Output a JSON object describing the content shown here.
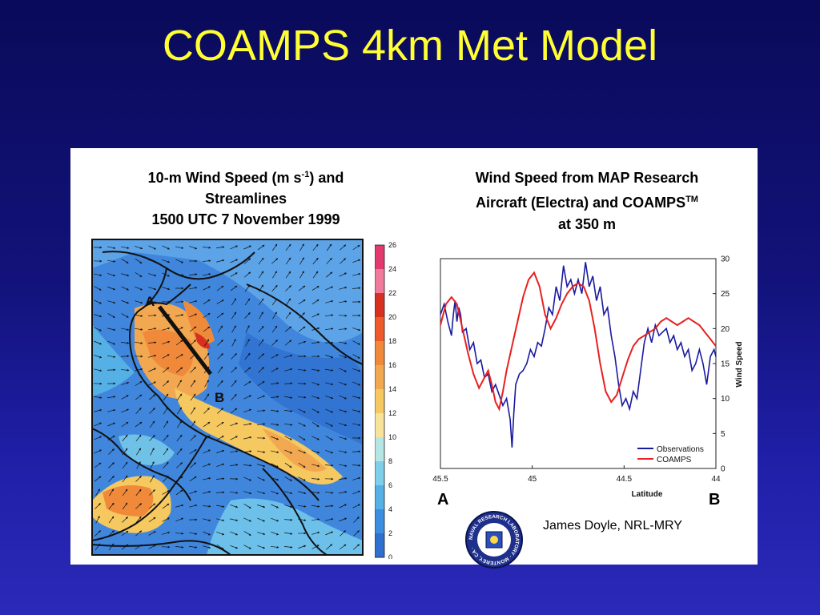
{
  "slide": {
    "title": "COAMPS 4km Met Model",
    "credit": "James Doyle, NRL-MRY",
    "seal_text": "NAVAL RESEARCH LABORATORY · MONTEREY, CA ·"
  },
  "map": {
    "title_line1_a": "10-m Wind Speed (m s",
    "title_line1_sup": "-1",
    "title_line1_b": ") and",
    "title_line2": "Streamlines",
    "title_line3": "1500 UTC 7 November 1999",
    "label_a": "A",
    "label_b": "B",
    "colorbar_ticks": [
      "26",
      "24",
      "22",
      "20",
      "18",
      "16",
      "14",
      "12",
      "10",
      "8",
      "6",
      "4",
      "2",
      "0"
    ],
    "colorbar_colors": [
      "#e23a6e",
      "#f07a9a",
      "#d83020",
      "#ee5a2a",
      "#f08a3a",
      "#f2a850",
      "#f5c860",
      "#f7e49a",
      "#b5e6e4",
      "#7dcfea",
      "#55b0e6",
      "#3c8ee0",
      "#2f6fcf"
    ]
  },
  "plot": {
    "title_line1": "Wind Speed from MAP Research",
    "title_line2_a": "Aircraft (Electra) and COAMPS",
    "title_line2_sup": "TM",
    "title_line3": "at 350 m",
    "end_a": "A",
    "end_b": "B"
  },
  "chart_data": {
    "type": "line",
    "xlabel": "Latitude",
    "ylabel": "Wind Speed",
    "xlim": [
      45.5,
      44
    ],
    "ylim": [
      0,
      30
    ],
    "xticks": [
      "45.5",
      "45",
      "44.5",
      "44"
    ],
    "yticks": [
      "0",
      "5",
      "10",
      "15",
      "20",
      "25",
      "30"
    ],
    "legend": "bottom-right",
    "series": [
      {
        "name": "Observations",
        "color": "#1a1aa0",
        "points": [
          [
            45.5,
            22
          ],
          [
            45.48,
            23.5
          ],
          [
            45.46,
            21
          ],
          [
            45.44,
            19
          ],
          [
            45.43,
            22
          ],
          [
            45.42,
            24
          ],
          [
            45.41,
            21
          ],
          [
            45.4,
            23
          ],
          [
            45.39,
            22
          ],
          [
            45.38,
            19.5
          ],
          [
            45.36,
            20
          ],
          [
            45.34,
            17
          ],
          [
            45.32,
            18
          ],
          [
            45.3,
            15
          ],
          [
            45.28,
            15.5
          ],
          [
            45.26,
            13
          ],
          [
            45.24,
            13.5
          ],
          [
            45.22,
            11
          ],
          [
            45.2,
            12
          ],
          [
            45.18,
            10.5
          ],
          [
            45.16,
            9
          ],
          [
            45.14,
            10
          ],
          [
            45.12,
            7
          ],
          [
            45.11,
            3
          ],
          [
            45.1,
            8
          ],
          [
            45.09,
            12
          ],
          [
            45.07,
            13.5
          ],
          [
            45.05,
            14
          ],
          [
            45.03,
            15
          ],
          [
            45.01,
            17
          ],
          [
            44.99,
            16
          ],
          [
            44.97,
            18
          ],
          [
            44.95,
            17.5
          ],
          [
            44.93,
            20
          ],
          [
            44.91,
            23
          ],
          [
            44.89,
            22
          ],
          [
            44.87,
            26
          ],
          [
            44.85,
            24
          ],
          [
            44.83,
            29
          ],
          [
            44.81,
            26
          ],
          [
            44.79,
            27
          ],
          [
            44.77,
            25
          ],
          [
            44.75,
            27
          ],
          [
            44.73,
            25
          ],
          [
            44.71,
            29.5
          ],
          [
            44.69,
            26
          ],
          [
            44.67,
            27.5
          ],
          [
            44.65,
            24
          ],
          [
            44.63,
            26
          ],
          [
            44.61,
            22
          ],
          [
            44.59,
            23
          ],
          [
            44.57,
            19
          ],
          [
            44.55,
            16
          ],
          [
            44.53,
            12
          ],
          [
            44.51,
            9
          ],
          [
            44.49,
            10
          ],
          [
            44.47,
            8.5
          ],
          [
            44.45,
            11
          ],
          [
            44.43,
            10
          ],
          [
            44.41,
            14
          ],
          [
            44.39,
            18
          ],
          [
            44.37,
            20
          ],
          [
            44.35,
            18
          ],
          [
            44.33,
            20.5
          ],
          [
            44.31,
            19
          ],
          [
            44.29,
            19.5
          ],
          [
            44.27,
            20
          ],
          [
            44.25,
            18
          ],
          [
            44.23,
            19
          ],
          [
            44.21,
            17
          ],
          [
            44.19,
            18
          ],
          [
            44.17,
            16
          ],
          [
            44.15,
            17
          ],
          [
            44.13,
            14
          ],
          [
            44.11,
            15
          ],
          [
            44.09,
            17
          ],
          [
            44.07,
            15
          ],
          [
            44.05,
            12
          ],
          [
            44.03,
            16
          ],
          [
            44.01,
            17
          ],
          [
            44.0,
            16
          ]
        ]
      },
      {
        "name": "COAMPS",
        "color": "#e82020",
        "points": [
          [
            45.5,
            20.5
          ],
          [
            45.47,
            23.5
          ],
          [
            45.44,
            24.5
          ],
          [
            45.41,
            23.5
          ],
          [
            45.38,
            20
          ],
          [
            45.35,
            16.5
          ],
          [
            45.32,
            13.5
          ],
          [
            45.29,
            11.5
          ],
          [
            45.26,
            13
          ],
          [
            45.24,
            14
          ],
          [
            45.22,
            12
          ],
          [
            45.2,
            9.5
          ],
          [
            45.18,
            8.5
          ],
          [
            45.16,
            11
          ],
          [
            45.14,
            14
          ],
          [
            45.11,
            17.5
          ],
          [
            45.08,
            21
          ],
          [
            45.05,
            24.5
          ],
          [
            45.02,
            27
          ],
          [
            44.99,
            28
          ],
          [
            44.96,
            26
          ],
          [
            44.93,
            22
          ],
          [
            44.9,
            20
          ],
          [
            44.87,
            21.5
          ],
          [
            44.84,
            23.5
          ],
          [
            44.81,
            25
          ],
          [
            44.78,
            26
          ],
          [
            44.75,
            26.5
          ],
          [
            44.72,
            26
          ],
          [
            44.69,
            24
          ],
          [
            44.66,
            20
          ],
          [
            44.63,
            15
          ],
          [
            44.6,
            11
          ],
          [
            44.57,
            9.5
          ],
          [
            44.54,
            10.5
          ],
          [
            44.51,
            13
          ],
          [
            44.48,
            15.5
          ],
          [
            44.45,
            17.5
          ],
          [
            44.42,
            18.5
          ],
          [
            44.39,
            19
          ],
          [
            44.36,
            19.5
          ],
          [
            44.33,
            20
          ],
          [
            44.3,
            21
          ],
          [
            44.27,
            21.5
          ],
          [
            44.24,
            21
          ],
          [
            44.21,
            20.5
          ],
          [
            44.18,
            21
          ],
          [
            44.15,
            21.5
          ],
          [
            44.12,
            21
          ],
          [
            44.09,
            20.5
          ],
          [
            44.06,
            19.5
          ],
          [
            44.03,
            18.5
          ],
          [
            44.0,
            17.5
          ]
        ]
      }
    ]
  }
}
